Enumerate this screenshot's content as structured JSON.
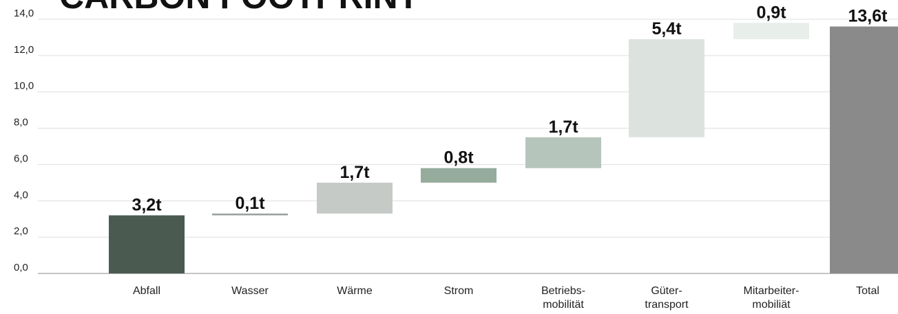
{
  "chart_data": {
    "type": "waterfall",
    "title": "CARBON FOOTPRINT",
    "categories": [
      "Abfall",
      "Wasser",
      "Wärme",
      "Strom",
      [
        "Betriebs-",
        "mobilität"
      ],
      [
        "Güter-",
        "transport"
      ],
      [
        "Mitarbeiter-",
        "mobiliät"
      ]
    ],
    "values": [
      3.2,
      0.1,
      1.7,
      0.8,
      1.7,
      5.4,
      0.9
    ],
    "value_labels": [
      "3,2t",
      "0,1t",
      "1,7t",
      "0,8t",
      "1,7t",
      "5,4t",
      "0,9t"
    ],
    "colors": [
      "#4b5a51",
      "#9aa39e",
      "#c5cac6",
      "#95ab9c",
      "#b6c5bb",
      "#dce3de",
      "#e8eee9"
    ],
    "total": {
      "label": "Total",
      "value": 13.6,
      "value_label": "13,6t",
      "color": "#8a8a8a"
    },
    "ylim": [
      0,
      14
    ],
    "yticks": [
      {
        "value": 0,
        "label": "0,0"
      },
      {
        "value": 2,
        "label": "2,0"
      },
      {
        "value": 4,
        "label": "4,0"
      },
      {
        "value": 6,
        "label": "6,0"
      },
      {
        "value": 8,
        "label": "8,0"
      },
      {
        "value": 10,
        "label": "10,0"
      },
      {
        "value": 12,
        "label": "12,0"
      },
      {
        "value": 14,
        "label": "14,0"
      }
    ],
    "grid": true
  }
}
